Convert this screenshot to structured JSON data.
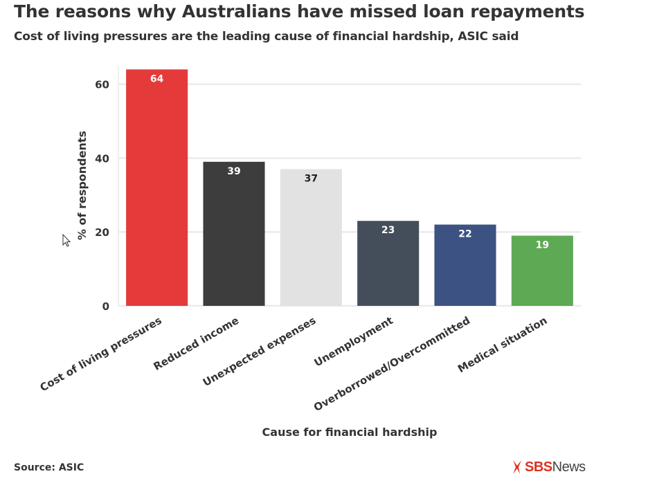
{
  "header": {
    "title": "The reasons why Australians have missed loan repayments",
    "subtitle": "Cost of living pressures are the leading cause of financial hardship, ASIC said"
  },
  "footer": {
    "source": "Source: ASIC",
    "logo_primary": "SBS",
    "logo_secondary": "News"
  },
  "chart_data": {
    "type": "bar",
    "title": "The reasons why Australians have missed loan repayments",
    "subtitle": "Cost of living pressures are the leading cause of financial hardship, ASIC said",
    "xlabel": "Cause for financial hardship",
    "ylabel": "% of respondents",
    "categories": [
      "Cost of living pressures",
      "Reduced income",
      "Unexpected expenses",
      "Unemployment",
      "Overborrowed/Overcommitted",
      "Medical situation"
    ],
    "values": [
      64,
      39,
      37,
      23,
      22,
      19
    ],
    "data_labels": [
      "64",
      "39",
      "37",
      "23",
      "22",
      "19"
    ],
    "colors": [
      "#e43a3a",
      "#3d3d3d",
      "#e2e2e2",
      "#444e5b",
      "#3b5282",
      "#5ea954"
    ],
    "label_colors": [
      "#ffffff",
      "#ffffff",
      "#222222",
      "#ffffff",
      "#ffffff",
      "#ffffff"
    ],
    "ylim": [
      0,
      65
    ],
    "yticks": [
      0,
      20,
      40,
      60
    ],
    "grid": true,
    "legend": "none",
    "source": "ASIC"
  }
}
